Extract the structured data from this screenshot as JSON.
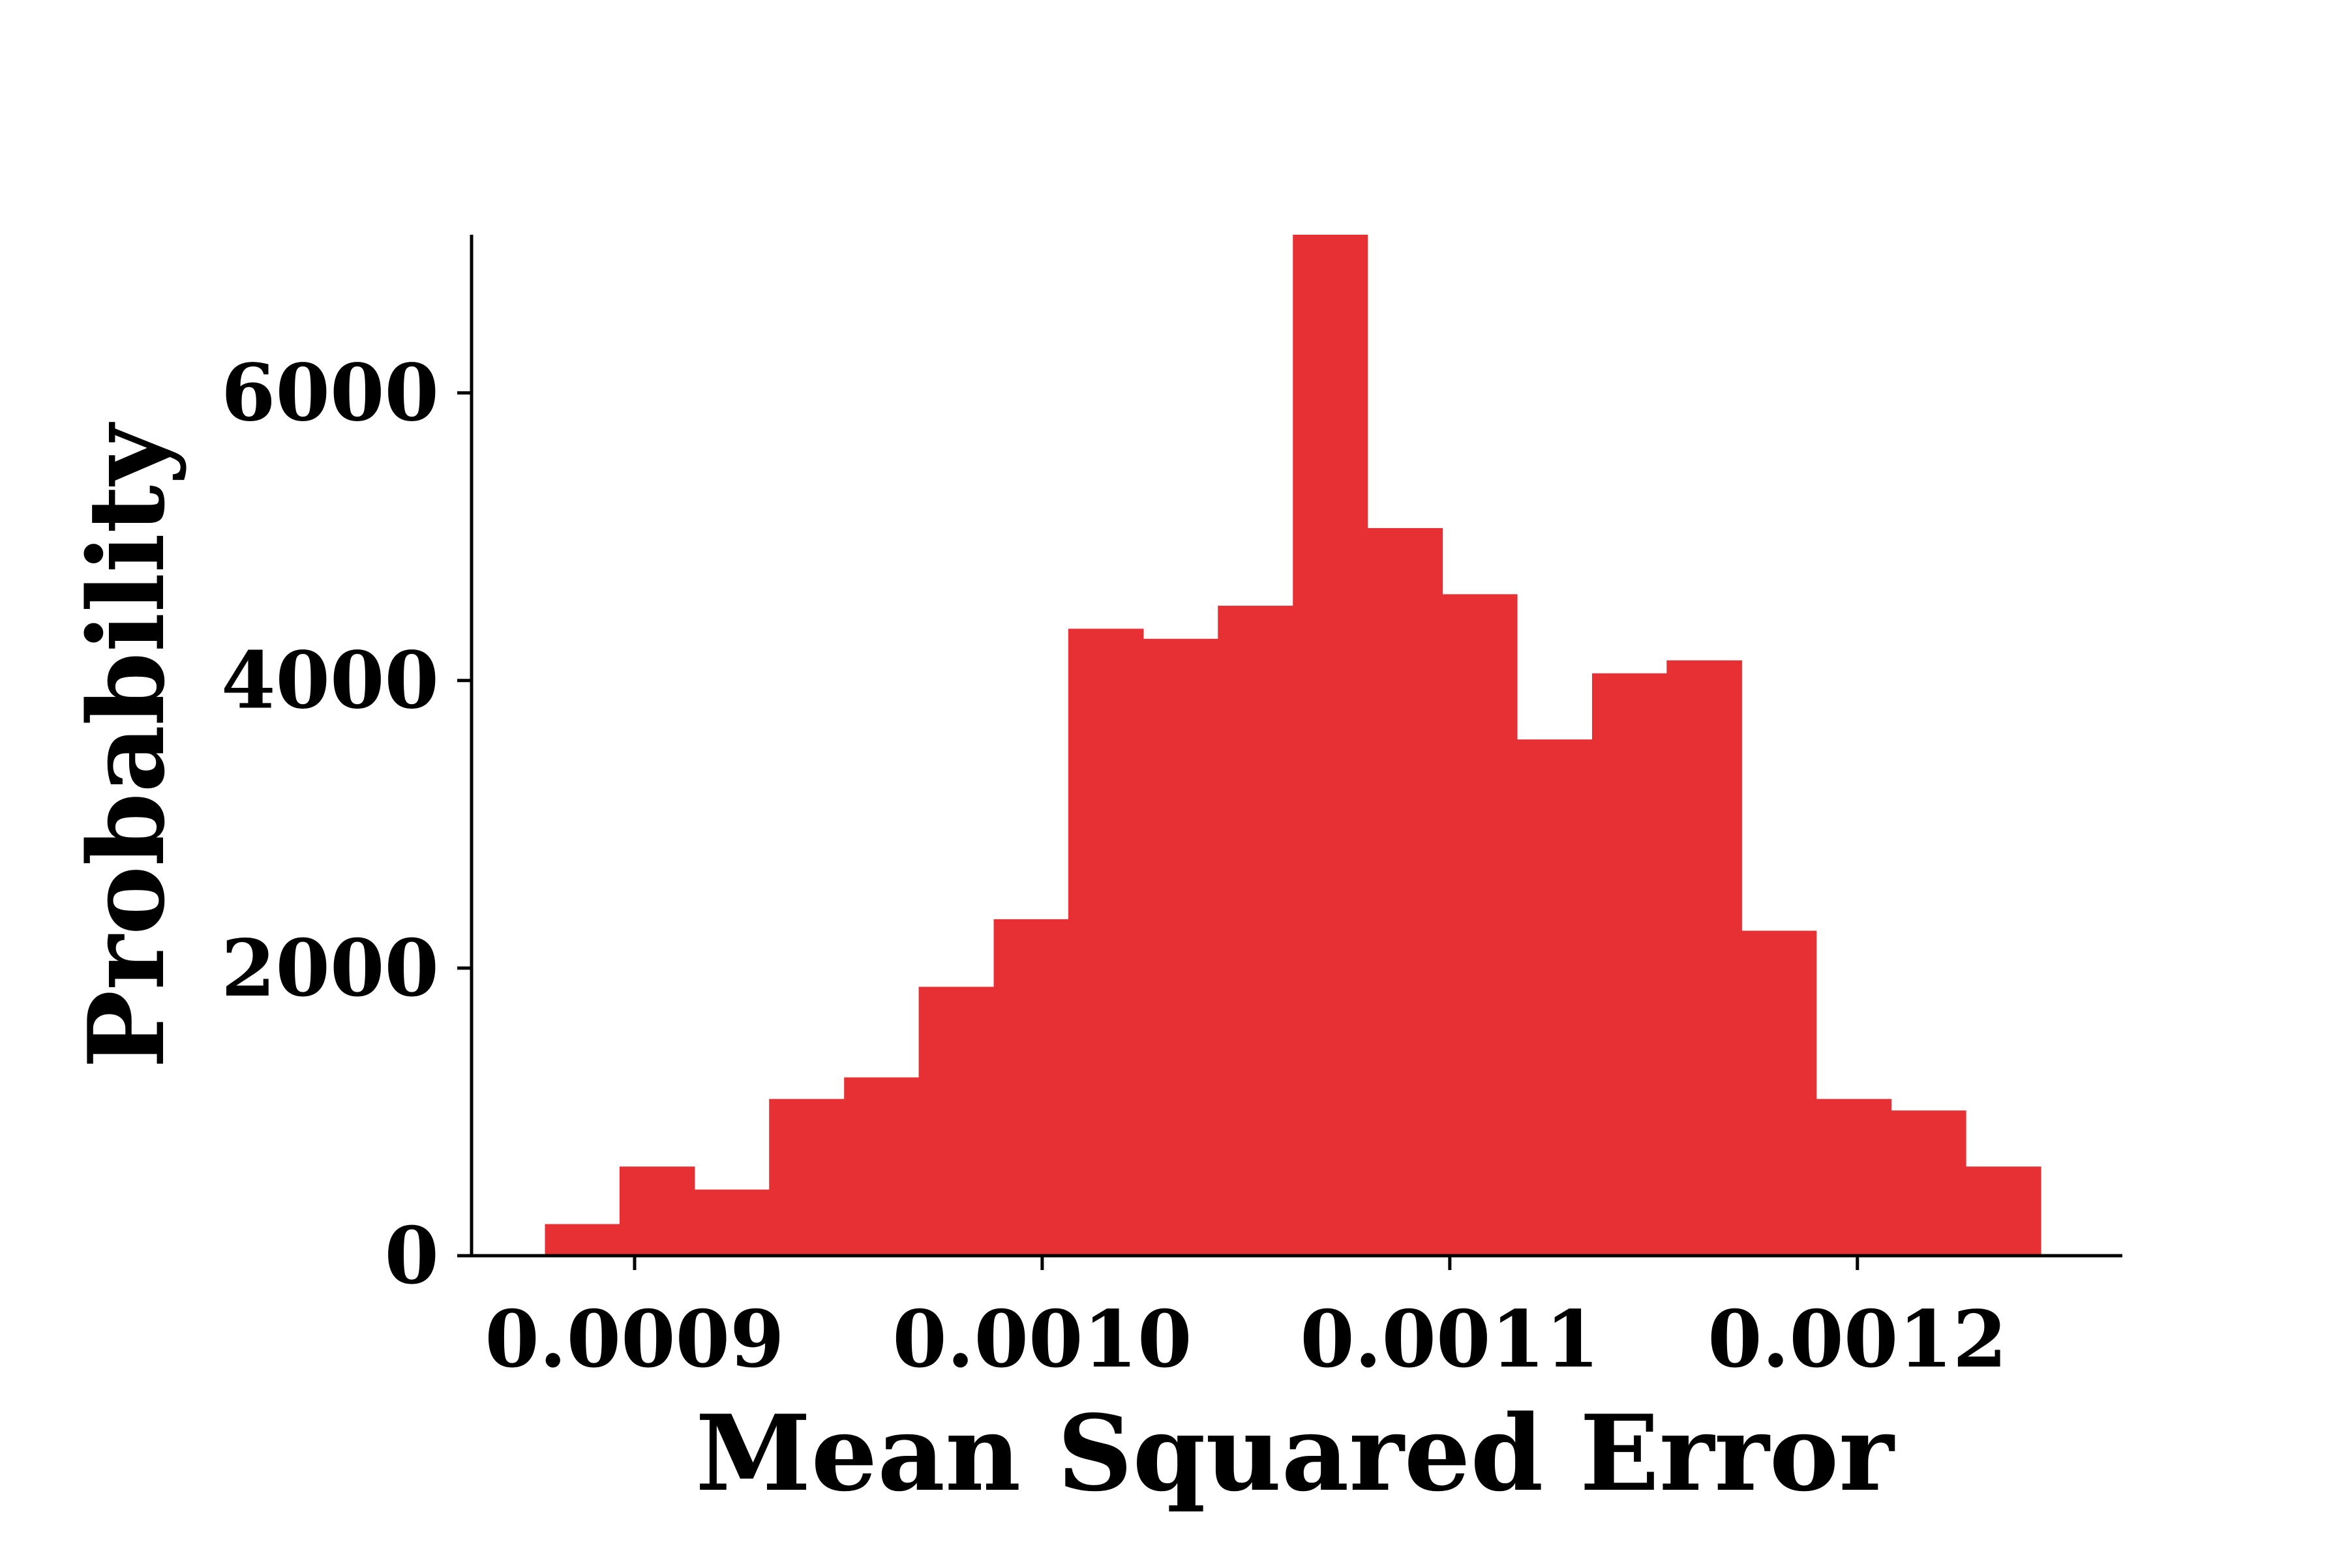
{
  "chart_data": {
    "type": "bar",
    "title": "",
    "xlabel": "Mean Squared Error",
    "ylabel": "Probability",
    "xlim": [
      0.00086,
      0.001265
    ],
    "ylim": [
      0,
      7100
    ],
    "x_ticks": [
      {
        "value": 0.0009,
        "label": "0.0009"
      },
      {
        "value": 0.001,
        "label": "0.0010"
      },
      {
        "value": 0.0011,
        "label": "0.0011"
      },
      {
        "value": 0.0012,
        "label": "0.0012"
      }
    ],
    "y_ticks": [
      {
        "value": 0,
        "label": "0"
      },
      {
        "value": 2000,
        "label": "2000"
      },
      {
        "value": 4000,
        "label": "4000"
      },
      {
        "value": 6000,
        "label": "6000"
      }
    ],
    "bin_edges": [
      0.000878,
      0.0008963,
      0.0009147,
      0.000933,
      0.0009514,
      0.0009697,
      0.0009881,
      0.0010064,
      0.0010248,
      0.0010431,
      0.0010615,
      0.0010798,
      0.0010982,
      0.0011165,
      0.0011349,
      0.0011532,
      0.0011716,
      0.0011899,
      0.0012083,
      0.0012266,
      0.001245
    ],
    "values": [
      220,
      620,
      460,
      1090,
      1240,
      1870,
      2340,
      4360,
      4290,
      4520,
      7100,
      5060,
      4600,
      3590,
      4050,
      4140,
      2260,
      1090,
      1010,
      620
    ],
    "color": "#e63033",
    "grid": false,
    "legend": "none"
  }
}
